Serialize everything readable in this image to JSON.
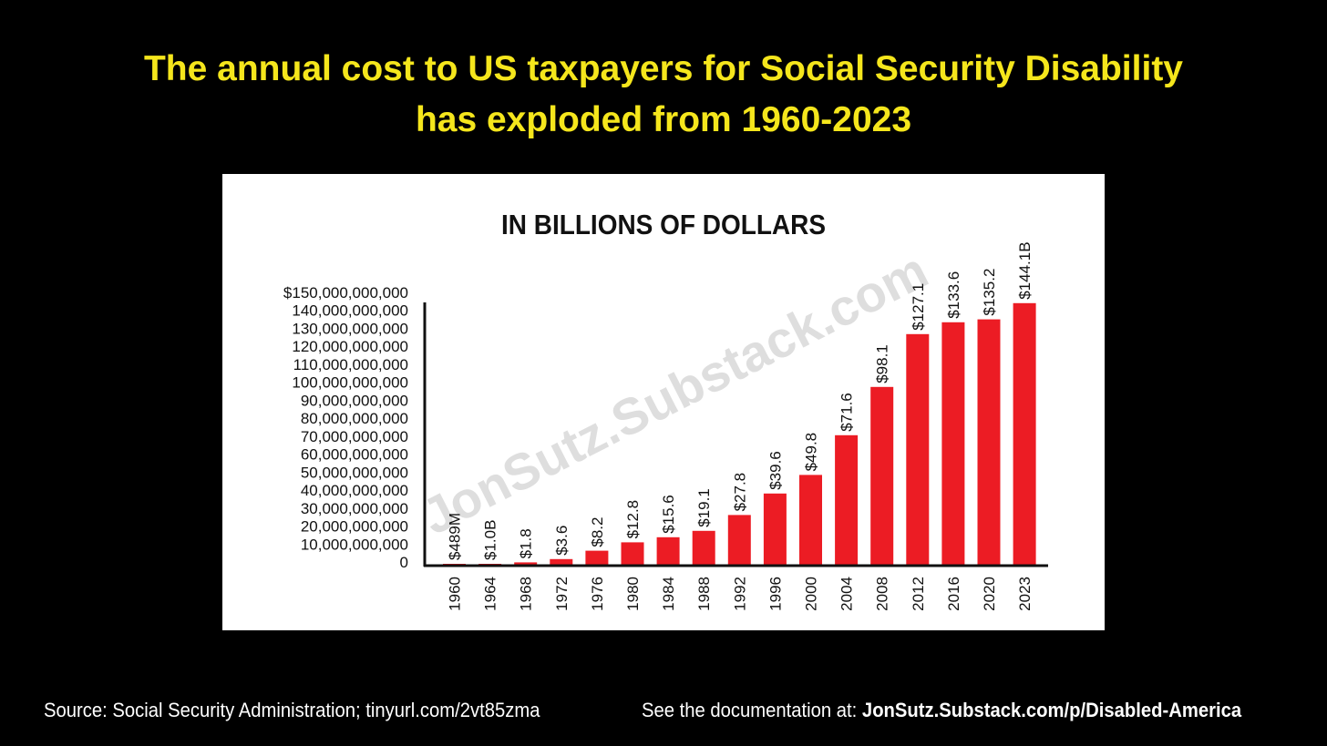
{
  "headline": {
    "line1": "The annual cost to US taxpayers for Social Security Disability",
    "line2": "has exploded from 1960-2023"
  },
  "footer": {
    "source": "Source: Social Security Administration; tinyurl.com/2vt85zma",
    "doc_prefix": "See the documentation at: ",
    "doc_link": "JonSutz.Substack.com/p/Disabled-America"
  },
  "watermark": "JonSutz.Substack.com",
  "colors": {
    "background": "#000000",
    "headline": "#f5e61c",
    "bar": "#ec1c24",
    "panel": "#ffffff",
    "axis": "#111111"
  },
  "chart_data": {
    "type": "bar",
    "title": "IN BILLIONS OF DOLLARS",
    "xlabel": "",
    "ylabel": "",
    "ylim": [
      0,
      150000000000
    ],
    "yticks": [
      0,
      10000000000,
      20000000000,
      30000000000,
      40000000000,
      50000000000,
      60000000000,
      70000000000,
      80000000000,
      90000000000,
      100000000000,
      110000000000,
      120000000000,
      130000000000,
      140000000000,
      150000000000
    ],
    "ytick_labels": [
      "0",
      "10,000,000,000",
      "20,000,000,000",
      "30,000,000,000",
      "40,000,000,000",
      "50,000,000,000",
      "60,000,000,000",
      "70,000,000,000",
      "80,000,000,000",
      "90,000,000,000",
      "100,000,000,000",
      "110,000,000,000",
      "120,000,000,000",
      "130,000,000,000",
      "140,000,000,000",
      "$150,000,000,000"
    ],
    "categories": [
      "1960",
      "1964",
      "1968",
      "1972",
      "1976",
      "1980",
      "1984",
      "1988",
      "1992",
      "1996",
      "2000",
      "2004",
      "2008",
      "2012",
      "2016",
      "2020",
      "2023"
    ],
    "values": [
      0.489,
      1.0,
      1.8,
      3.6,
      8.2,
      12.8,
      15.6,
      19.1,
      27.8,
      39.6,
      49.8,
      71.6,
      98.1,
      127.1,
      133.6,
      135.2,
      144.1
    ],
    "value_unit": "billions of dollars",
    "data_labels": [
      "$489M",
      "$1.0B",
      "$1.8",
      "$3.6",
      "$8.2",
      "$12.8",
      "$15.6",
      "$19.1",
      "$27.8",
      "$39.6",
      "$49.8",
      "$71.6",
      "$98.1",
      "$127.1",
      "$133.6",
      "$135.2",
      "$144.1B"
    ]
  }
}
